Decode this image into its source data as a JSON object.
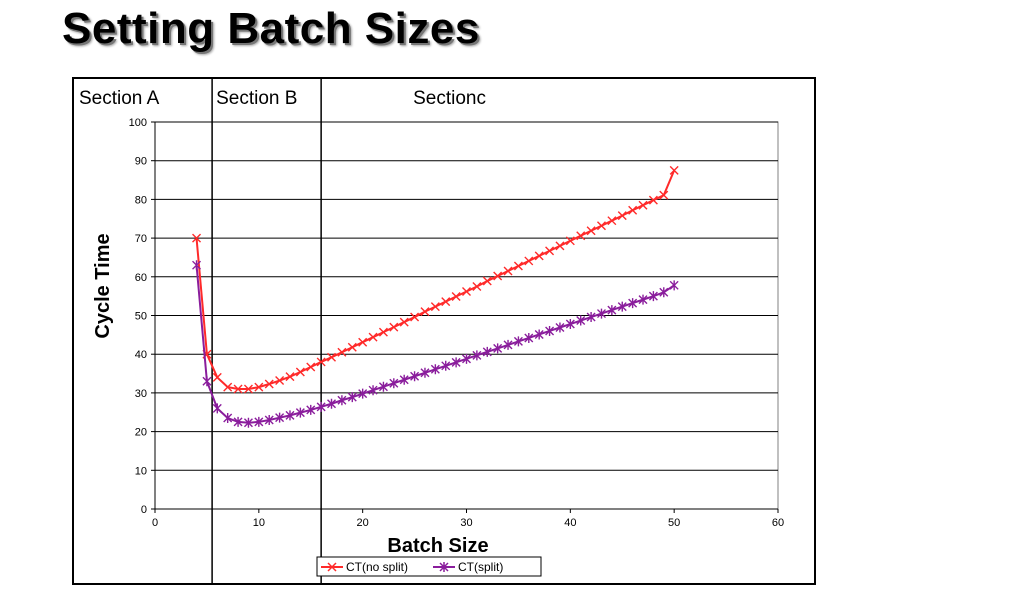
{
  "page_title": "Setting Batch Sizes",
  "chart_data": {
    "type": "line",
    "title": "Setting Batch Sizes",
    "xlabel": "Batch Size",
    "ylabel": "Cycle Time",
    "xlim": [
      0,
      60
    ],
    "ylim": [
      0,
      100
    ],
    "x_ticks": [
      0,
      10,
      20,
      30,
      40,
      50,
      60
    ],
    "y_ticks": [
      0,
      10,
      20,
      30,
      40,
      50,
      60,
      70,
      80,
      90,
      100
    ],
    "grid": "horizontal",
    "legend_position": "bottom",
    "sections": [
      {
        "label": "Section A",
        "start": 0,
        "end": 5.5
      },
      {
        "label": "Section B",
        "start": 5.5,
        "end": 16
      },
      {
        "label": "Sectionc",
        "start": 16,
        "end": 60
      }
    ],
    "series": [
      {
        "name": "CT(no split)",
        "color": "#ff2a2a",
        "marker": "x",
        "x": [
          4,
          5,
          6,
          7,
          8,
          9,
          10,
          11,
          12,
          13,
          14,
          15,
          16,
          17,
          18,
          19,
          20,
          21,
          22,
          23,
          24,
          25,
          26,
          27,
          28,
          29,
          30,
          31,
          32,
          33,
          34,
          35,
          36,
          37,
          38,
          39,
          40,
          41,
          42,
          43,
          44,
          45,
          46,
          47,
          48,
          49,
          50
        ],
        "values": [
          70,
          40,
          34,
          31.5,
          31,
          31,
          31.5,
          32.3,
          33.2,
          34.2,
          35.4,
          36.7,
          38,
          39.2,
          40.5,
          41.8,
          43.1,
          44.4,
          45.7,
          47,
          48.3,
          49.6,
          51,
          52.3,
          53.6,
          54.9,
          56.2,
          57.5,
          58.9,
          60.2,
          61.5,
          62.8,
          64.1,
          65.4,
          66.7,
          68,
          69.3,
          70.6,
          71.9,
          73.2,
          74.5,
          75.8,
          77.2,
          78.5,
          79.8,
          81.1,
          87.5
        ]
      },
      {
        "name": "CT(split)",
        "color": "#8a1d9c",
        "marker": "asterisk",
        "x": [
          4,
          5,
          6,
          7,
          8,
          9,
          10,
          11,
          12,
          13,
          14,
          15,
          16,
          17,
          18,
          19,
          20,
          21,
          22,
          23,
          24,
          25,
          26,
          27,
          28,
          29,
          30,
          31,
          32,
          33,
          34,
          35,
          36,
          37,
          38,
          39,
          40,
          41,
          42,
          43,
          44,
          45,
          46,
          47,
          48,
          49,
          50
        ],
        "values": [
          63,
          33,
          26,
          23.5,
          22.5,
          22.3,
          22.5,
          23,
          23.6,
          24.2,
          24.9,
          25.6,
          26.4,
          27.2,
          28.1,
          28.9,
          29.8,
          30.7,
          31.6,
          32.5,
          33.4,
          34.3,
          35.2,
          36.1,
          37,
          37.9,
          38.8,
          39.7,
          40.6,
          41.5,
          42.4,
          43.3,
          44.2,
          45.1,
          46,
          46.9,
          47.8,
          48.7,
          49.6,
          50.5,
          51.4,
          52.3,
          53.2,
          54.1,
          55,
          56,
          57.8
        ]
      }
    ]
  }
}
